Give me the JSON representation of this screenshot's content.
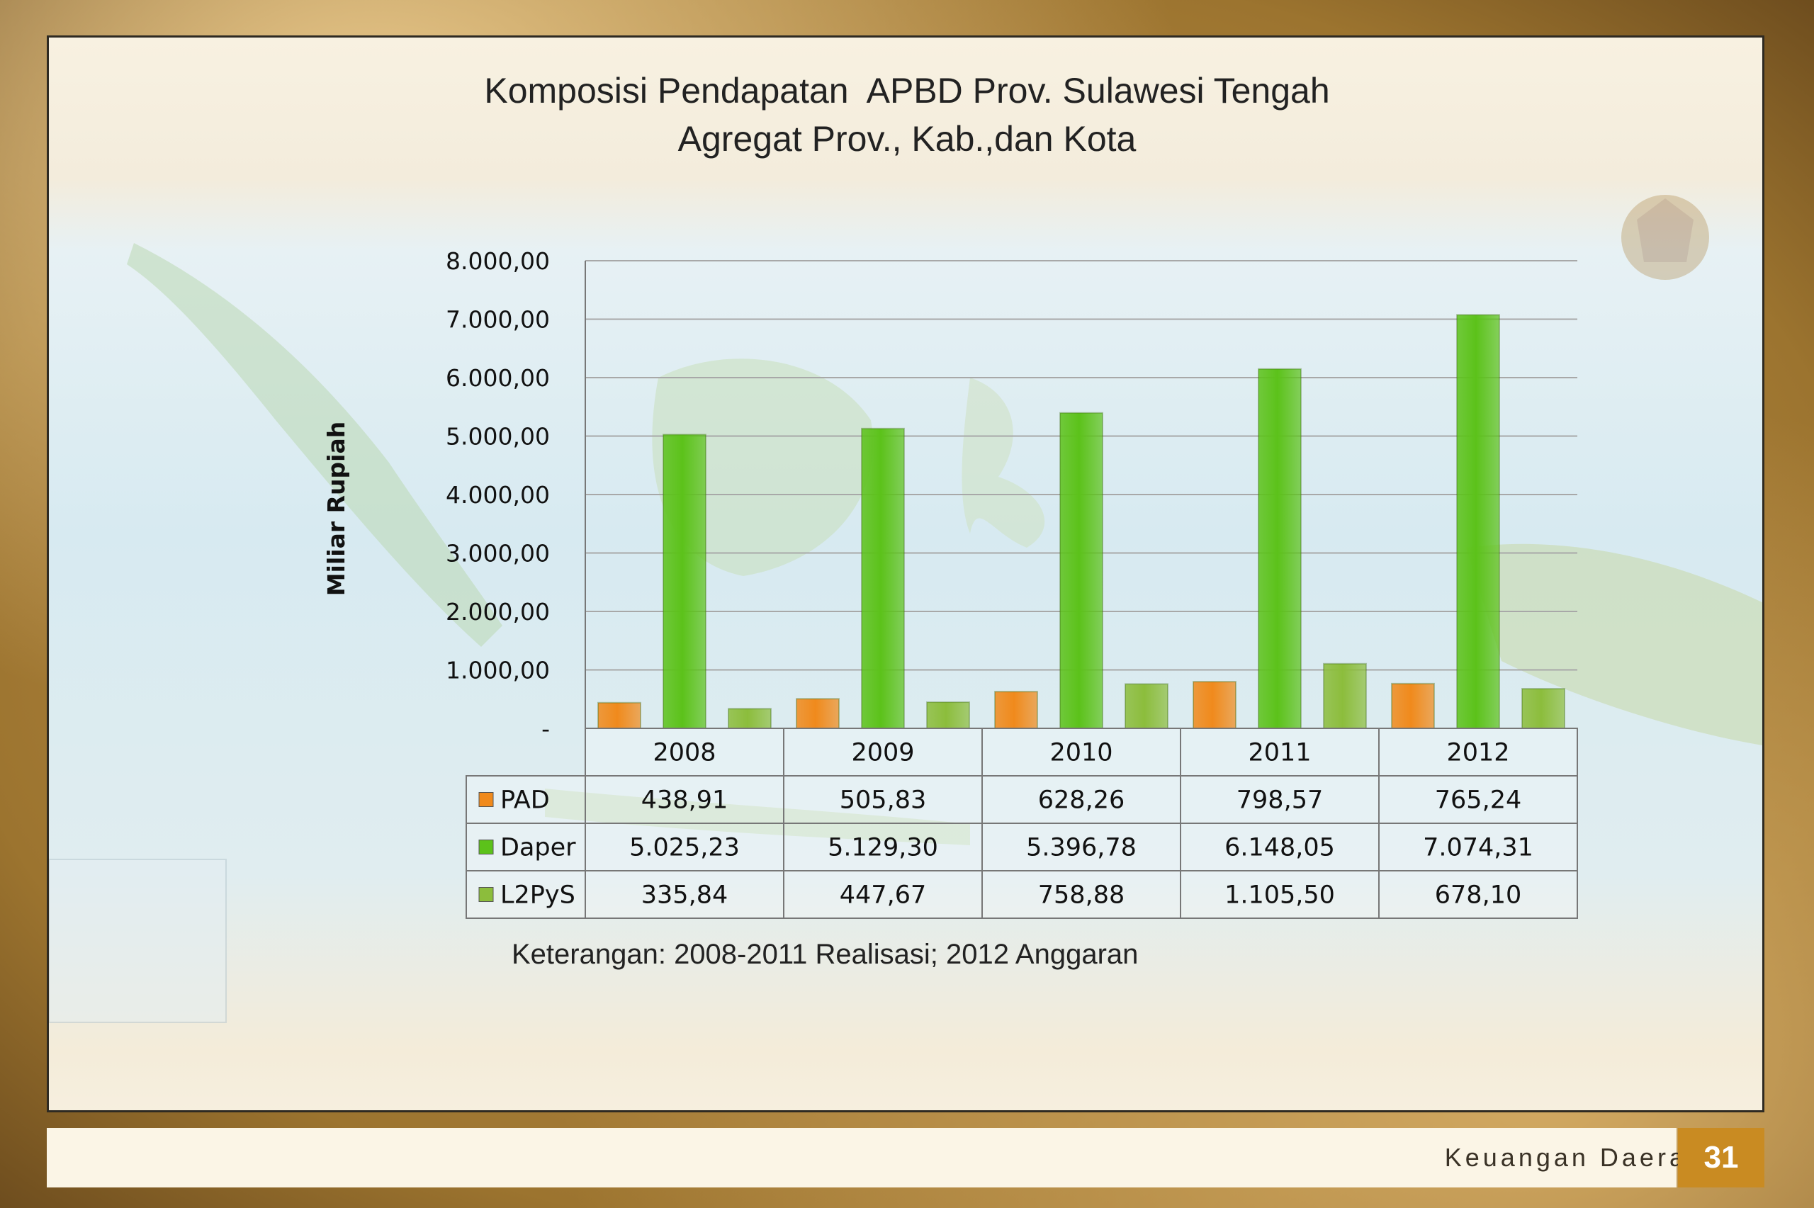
{
  "chart_data": {
    "type": "bar",
    "title_line1": "Komposisi Pendapatan  APBD Prov. Sulawesi Tengah",
    "title_line2": "Agregat Prov., Kab.,dan Kota",
    "ylabel": "Miliar Rupiah",
    "xlabel": "",
    "ylim": [
      0,
      8000
    ],
    "yticks": [
      0,
      1000,
      2000,
      3000,
      4000,
      5000,
      6000,
      7000,
      8000
    ],
    "ytick_labels": [
      "-",
      "1.000,00",
      "2.000,00",
      "3.000,00",
      "4.000,00",
      "5.000,00",
      "6.000,00",
      "7.000,00",
      "8.000,00"
    ],
    "categories": [
      "2008",
      "2009",
      "2010",
      "2011",
      "2012"
    ],
    "grid": true,
    "legend": "data-table",
    "series": [
      {
        "name": "PAD",
        "color": "#f08a1c",
        "values": [
          438.91,
          505.83,
          628.26,
          798.57,
          765.24
        ],
        "labels": [
          "438,91",
          "505,83",
          "628,26",
          "798,57",
          "765,24"
        ]
      },
      {
        "name": "Daper",
        "color": "#5cc21a",
        "values": [
          5025.23,
          5129.3,
          5396.78,
          6148.05,
          7074.31
        ],
        "labels": [
          "5.025,23",
          "5.129,30",
          "5.396,78",
          "6.148,05",
          "7.074,31"
        ]
      },
      {
        "name": "L2PyS",
        "color": "#8cbd3c",
        "values": [
          335.84,
          447.67,
          758.88,
          1105.5,
          678.1
        ],
        "labels": [
          "335,84",
          "447,67",
          "758,88",
          "1.105,50",
          "678,10"
        ]
      }
    ],
    "note": "Keterangan: 2008-2011 Realisasi; 2012 Anggaran"
  },
  "footer": {
    "section_label": "Keuangan Daerah",
    "page_number": "31",
    "accent_color": "#c98b22"
  }
}
